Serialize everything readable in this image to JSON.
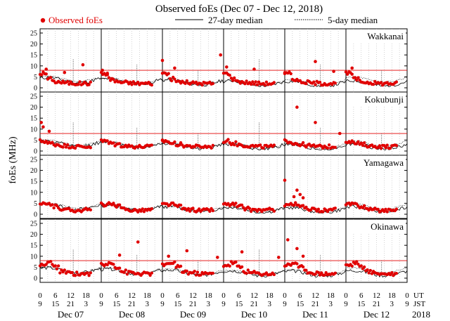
{
  "chart_data": {
    "type": "scatter",
    "title": "Observed foEs (Dec 07 - Dec 12, 2018)",
    "ylabel": "foEs (MHz)",
    "ylim": [
      0,
      25
    ],
    "yticks": [
      0,
      5,
      10,
      15,
      20,
      25
    ],
    "hour_labels_ut": [
      "0",
      "6",
      "12",
      "18",
      "0",
      "6",
      "12",
      "18",
      "0",
      "6",
      "12",
      "18",
      "0",
      "6",
      "12",
      "18",
      "0",
      "6",
      "12",
      "18",
      "0",
      "6",
      "12",
      "18",
      "0"
    ],
    "hour_labels_jst": [
      "9",
      "15",
      "21",
      "3",
      "9",
      "15",
      "21",
      "3",
      "9",
      "15",
      "21",
      "3",
      "9",
      "15",
      "21",
      "3",
      "9",
      "15",
      "21",
      "3",
      "9",
      "15",
      "21",
      "3",
      "9"
    ],
    "ut_label": "UT",
    "jst_label": "JST",
    "dates": [
      "Dec 07",
      "Dec 08",
      "Dec 09",
      "Dec 10",
      "Dec 11",
      "Dec 12"
    ],
    "year": "2018",
    "legend": {
      "observed": "Observed foEs",
      "median27": "27-day median",
      "median5": "5-day median",
      "observed_color": "#e00000"
    },
    "panels": [
      {
        "station": "Wakkanai",
        "threshold": 8.0,
        "median27": [
          3.5,
          3.0,
          2.5,
          2.0,
          1.8,
          2.0
        ],
        "median5": [
          4.0,
          3.2,
          2.6,
          2.2,
          2.6,
          3.8
        ],
        "spikes": [
          13,
          38,
          62,
          86,
          110,
          134
        ],
        "day_profile": [
          6.5,
          4.0,
          2.8,
          2.5,
          2.2,
          2.0,
          2.0,
          2.0
        ],
        "extra": [
          [
            0.1,
            8.5
          ],
          [
            0.4,
            7.0
          ],
          [
            1.02,
            8.0
          ],
          [
            1.1,
            6.0
          ],
          [
            2.0,
            12.5
          ],
          [
            2.2,
            9.0
          ],
          [
            2.95,
            15.0
          ],
          [
            3.05,
            9.5
          ],
          [
            4.0,
            6.5
          ],
          [
            4.5,
            12.0
          ],
          [
            4.8,
            7.5
          ],
          [
            5.1,
            9.0
          ],
          [
            3.5,
            8.5
          ],
          [
            0.7,
            10.5
          ]
        ],
        "obs_days": [
          0,
          1,
          2,
          3,
          4,
          5
        ]
      },
      {
        "station": "Kokubunji",
        "threshold": 8.0,
        "median27": [
          3.2,
          2.8,
          2.3,
          2.0,
          1.8,
          2.0
        ],
        "median5": [
          3.8,
          3.0,
          2.5,
          2.2,
          2.5,
          3.5
        ],
        "spikes": [
          13,
          38,
          62,
          86,
          110,
          134
        ],
        "day_profile": [
          4.5,
          3.5,
          3.0,
          2.5,
          2.2,
          2.0,
          2.0,
          2.0
        ],
        "extra": [
          [
            0.02,
            13.0
          ],
          [
            0.05,
            11.0
          ],
          [
            0.15,
            9.0
          ],
          [
            4.2,
            20.0
          ],
          [
            4.5,
            13.0
          ],
          [
            4.9,
            8.0
          ],
          [
            2.0,
            5.0
          ]
        ],
        "obs_days": [
          0,
          1,
          2,
          3,
          4,
          5
        ]
      },
      {
        "station": "Yamagawa",
        "threshold": 0,
        "median27": [
          3.5,
          3.0,
          2.3,
          2.0,
          1.8,
          2.2
        ],
        "median5": [
          3.8,
          3.2,
          2.5,
          2.2,
          2.4,
          3.5
        ],
        "spikes": [],
        "day_profile": [
          4.5,
          4.5,
          3.5,
          2.5,
          2.0,
          1.8,
          1.8,
          2.0
        ],
        "extra": [
          [
            4.0,
            15.5
          ],
          [
            4.2,
            11.0
          ],
          [
            4.25,
            9.0
          ],
          [
            4.3,
            7.5
          ],
          [
            4.15,
            8.0
          ]
        ],
        "obs_days": [
          0,
          1,
          2,
          3,
          4,
          5
        ]
      },
      {
        "station": "Okinawa",
        "threshold": 8.0,
        "median27": [
          3.5,
          3.0,
          2.5,
          2.2,
          2.0,
          2.3
        ],
        "median5": [
          3.8,
          3.3,
          2.8,
          2.4,
          2.6,
          3.6
        ],
        "spikes": [
          13,
          38,
          62,
          86,
          110,
          134
        ],
        "day_profile": [
          6.0,
          7.0,
          5.0,
          3.0,
          2.5,
          2.0,
          2.0,
          2.0
        ],
        "extra": [
          [
            1.3,
            10.5
          ],
          [
            1.6,
            16.5
          ],
          [
            2.1,
            10.0
          ],
          [
            2.4,
            12.5
          ],
          [
            2.9,
            9.5
          ],
          [
            3.3,
            12.0
          ],
          [
            4.05,
            17.5
          ],
          [
            4.2,
            13.5
          ],
          [
            4.3,
            10.0
          ],
          [
            3.9,
            9.5
          ]
        ],
        "obs_days": [
          0,
          1,
          2,
          3,
          4,
          5
        ]
      }
    ]
  }
}
